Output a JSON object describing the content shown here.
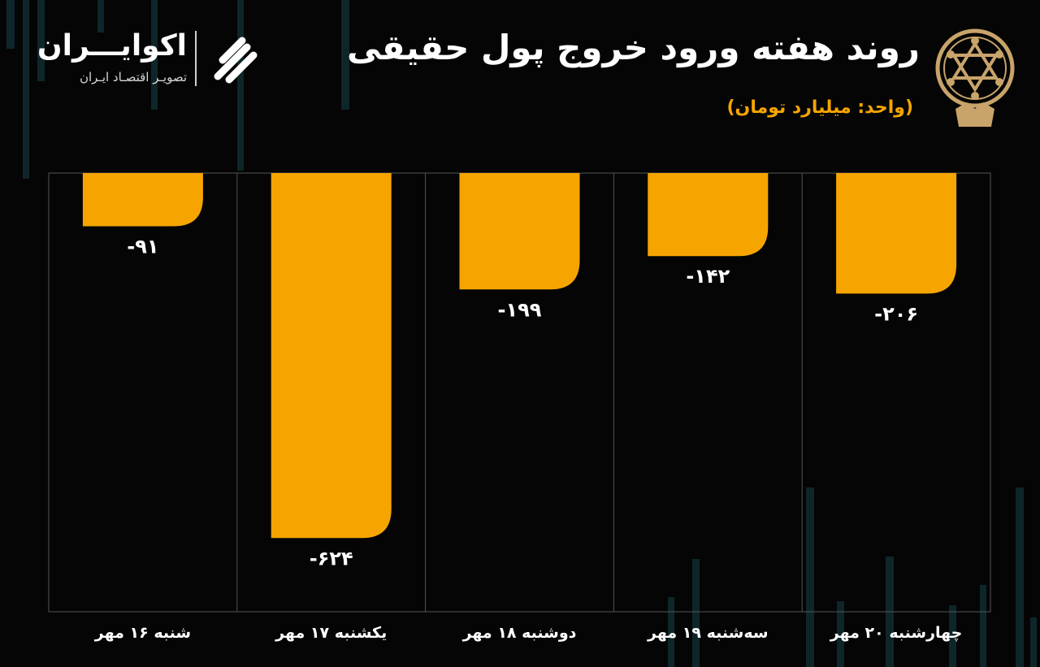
{
  "header": {
    "title": "روند هفته ورود خروج پول حقیقی",
    "unit": "(واحد: میلیارد تومان)"
  },
  "brand": {
    "name": "اکوایـــران",
    "tagline": "تصویـر اقتصـاد ایـران"
  },
  "colors": {
    "background": "#050505",
    "bar": "#f6a500",
    "text": "#ffffff",
    "accent": "#f6a500",
    "grid": "#555555"
  },
  "chart_data": {
    "type": "bar",
    "orientation": "vertical",
    "title": "روند هفته ورود خروج پول حقیقی",
    "subtitle": "(واحد: میلیارد تومان)",
    "categories": [
      "شنبه ۱۶ مهر",
      "یکشنبه ۱۷ مهر",
      "دوشنبه ۱۸ مهر",
      "سه‌شنبه ۱۹ مهر",
      "چهارشنبه ۲۰ مهر"
    ],
    "values": [
      -91,
      -624,
      -199,
      -142,
      -206
    ],
    "value_labels": [
      "-۹۱",
      "-۶۲۴",
      "-۱۹۹",
      "-۱۴۲",
      "-۲۰۶"
    ],
    "ylim": [
      -750,
      0
    ],
    "grid": "vertical dividers between categories",
    "legend": "none"
  }
}
